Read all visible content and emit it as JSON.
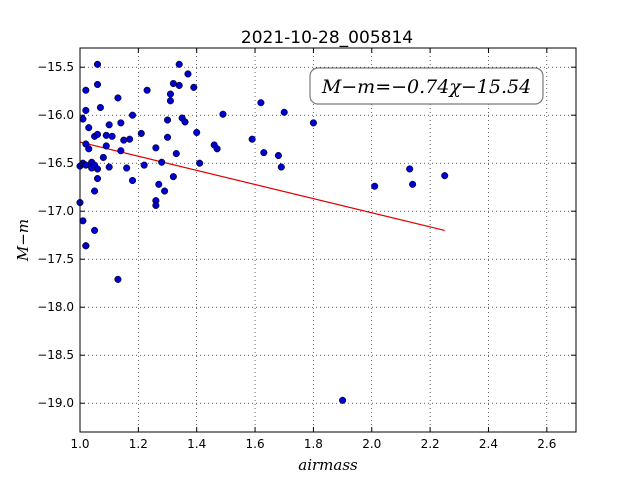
{
  "chart_data": {
    "type": "scatter",
    "title": "2021-10-28_005814",
    "xlabel": "airmass",
    "ylabel": "M−m",
    "xlim": [
      1.0,
      2.7
    ],
    "ylim": [
      -19.3,
      -15.3
    ],
    "y_inverted": true,
    "grid": true,
    "x_ticks": [
      1.0,
      1.2,
      1.4,
      1.6,
      1.8,
      2.0,
      2.2,
      2.4,
      2.6
    ],
    "x_tick_labels": [
      "1.0",
      "1.2",
      "1.4",
      "1.6",
      "1.8",
      "2.0",
      "2.2",
      "2.4",
      "2.6"
    ],
    "y_ticks": [
      -15.5,
      -16.0,
      -16.5,
      -17.0,
      -17.5,
      -18.0,
      -18.5,
      -19.0
    ],
    "y_tick_labels": [
      "−15.5",
      "−16.0",
      "−16.5",
      "−17.0",
      "−17.5",
      "−18.0",
      "−18.5",
      "−19.0"
    ],
    "point_color": "#0000c8",
    "fit_color": "#dd0000",
    "fit_label": "M−m=−0.74χ−15.54",
    "fit_label_placement": "top-right",
    "fit_line": {
      "x": [
        1.0,
        2.25
      ],
      "y": [
        -16.28,
        -17.2
      ]
    },
    "points": {
      "x": [
        1.0,
        1.0,
        1.01,
        1.01,
        1.01,
        1.02,
        1.02,
        1.02,
        1.02,
        1.02,
        1.02,
        1.03,
        1.03,
        1.04,
        1.04,
        1.05,
        1.05,
        1.05,
        1.05,
        1.06,
        1.06,
        1.06,
        1.06,
        1.06,
        1.07,
        1.08,
        1.09,
        1.09,
        1.1,
        1.1,
        1.11,
        1.13,
        1.13,
        1.14,
        1.14,
        1.15,
        1.16,
        1.17,
        1.18,
        1.18,
        1.21,
        1.22,
        1.23,
        1.26,
        1.26,
        1.26,
        1.27,
        1.28,
        1.29,
        1.3,
        1.3,
        1.31,
        1.31,
        1.32,
        1.32,
        1.33,
        1.34,
        1.34,
        1.35,
        1.36,
        1.37,
        1.39,
        1.4,
        1.41,
        1.46,
        1.47,
        1.49,
        1.59,
        1.62,
        1.63,
        1.68,
        1.69,
        1.7,
        1.8,
        1.9,
        2.01,
        2.13,
        2.14,
        2.25
      ],
      "y": [
        -16.53,
        -16.91,
        -16.04,
        -16.5,
        -17.1,
        -15.74,
        -15.95,
        -16.3,
        -16.52,
        -17.36,
        -17.36,
        -16.13,
        -16.35,
        -16.49,
        -16.55,
        -16.22,
        -16.52,
        -16.79,
        -17.2,
        -15.47,
        -15.68,
        -16.2,
        -16.56,
        -16.66,
        -15.92,
        -16.44,
        -16.21,
        -16.32,
        -16.1,
        -16.54,
        -16.22,
        -15.82,
        -17.71,
        -16.08,
        -16.37,
        -16.26,
        -16.55,
        -16.25,
        -16.0,
        -16.68,
        -16.19,
        -16.52,
        -15.74,
        -16.34,
        -16.89,
        -16.94,
        -16.72,
        -16.49,
        -16.79,
        -16.23,
        -16.05,
        -15.78,
        -15.85,
        -15.67,
        -16.64,
        -16.4,
        -15.47,
        -15.69,
        -16.03,
        -16.07,
        -15.57,
        -15.71,
        -16.18,
        -16.5,
        -16.31,
        -16.35,
        -15.99,
        -16.25,
        -15.87,
        -16.39,
        -16.42,
        -16.54,
        -15.97,
        -16.08,
        -18.97,
        -16.74,
        -16.56,
        -16.72,
        -16.63
      ]
    }
  }
}
